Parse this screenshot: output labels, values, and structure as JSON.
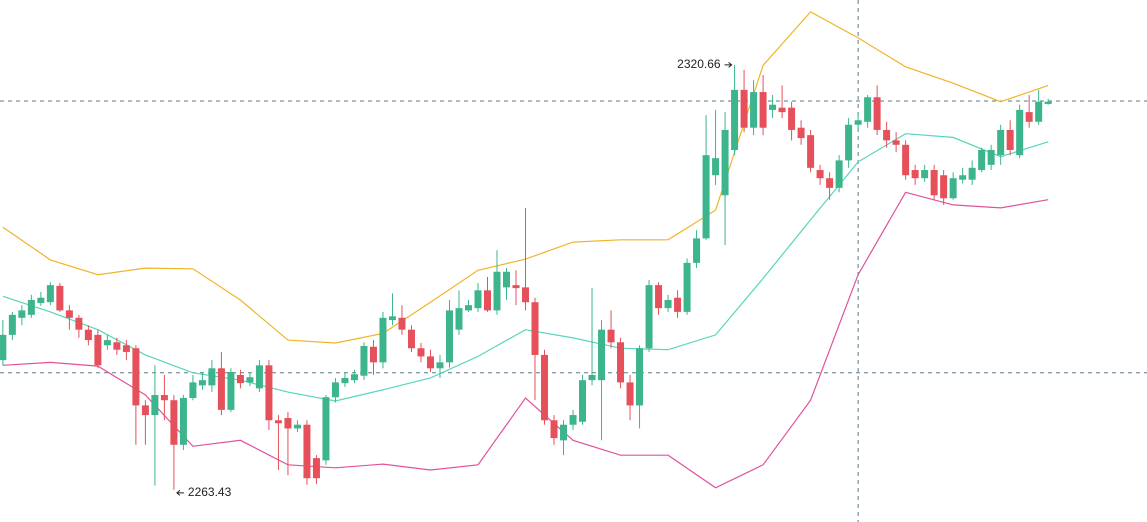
{
  "chart_data": {
    "type": "candlestick",
    "up_color": "#3cb48c",
    "down_color": "#e5505a",
    "ylim": [
      2259.1,
      2329.4
    ],
    "xlim": [
      -0.3,
      120.4
    ],
    "candles": [
      [
        2280.9,
        2286.3,
        2280.2,
        2284.3
      ],
      [
        2284.3,
        2287.4,
        2283.6,
        2287.0
      ],
      [
        2286.6,
        2288.3,
        2285.6,
        2287.6
      ],
      [
        2287.0,
        2289.7,
        2286.6,
        2289.0
      ],
      [
        2288.6,
        2290.1,
        2288.2,
        2289.3
      ],
      [
        2288.7,
        2291.4,
        2288.3,
        2291.0
      ],
      [
        2290.9,
        2291.3,
        2287.4,
        2287.6
      ],
      [
        2287.6,
        2288.3,
        2285.0,
        2286.6
      ],
      [
        2286.6,
        2287.0,
        2283.9,
        2285.0
      ],
      [
        2285.0,
        2285.6,
        2282.9,
        2283.6
      ],
      [
        2284.3,
        2285.0,
        2279.8,
        2280.2
      ],
      [
        2282.9,
        2284.3,
        2282.3,
        2283.6
      ],
      [
        2283.3,
        2283.9,
        2281.6,
        2282.3
      ],
      [
        2282.9,
        2283.6,
        2280.9,
        2282.0
      ],
      [
        2282.5,
        2282.9,
        2269.5,
        2274.8
      ],
      [
        2274.8,
        2275.5,
        2269.5,
        2273.5
      ],
      [
        2273.5,
        2280.2,
        2264.0,
        2276.2
      ],
      [
        2276.2,
        2278.9,
        2272.8,
        2275.5
      ],
      [
        2275.5,
        2276.2,
        2263.43,
        2269.5
      ],
      [
        2269.5,
        2276.2,
        2268.8,
        2275.8
      ],
      [
        2275.8,
        2278.9,
        2275.5,
        2277.9
      ],
      [
        2277.5,
        2279.3,
        2276.9,
        2278.2
      ],
      [
        2277.5,
        2280.9,
        2276.6,
        2279.8
      ],
      [
        2279.8,
        2282.0,
        2273.5,
        2274.2
      ],
      [
        2274.2,
        2279.8,
        2273.9,
        2279.3
      ],
      [
        2278.9,
        2279.6,
        2277.1,
        2277.8
      ],
      [
        2277.9,
        2279.3,
        2277.4,
        2278.6
      ],
      [
        2277.1,
        2280.9,
        2276.6,
        2280.2
      ],
      [
        2280.2,
        2280.9,
        2271.5,
        2272.8
      ],
      [
        2272.8,
        2273.5,
        2266.1,
        2272.4
      ],
      [
        2273.1,
        2273.9,
        2265.4,
        2271.7
      ],
      [
        2271.7,
        2272.8,
        2271.2,
        2272.2
      ],
      [
        2272.2,
        2272.8,
        2264.1,
        2265.0
      ],
      [
        2267.7,
        2268.1,
        2264.2,
        2265.0
      ],
      [
        2267.4,
        2276.2,
        2266.8,
        2275.9
      ],
      [
        2275.9,
        2278.5,
        2275.2,
        2277.9
      ],
      [
        2277.8,
        2279.3,
        2277.3,
        2278.5
      ],
      [
        2278.2,
        2279.6,
        2277.8,
        2279.0
      ],
      [
        2278.8,
        2283.3,
        2278.2,
        2282.8
      ],
      [
        2282.7,
        2283.6,
        2278.9,
        2280.6
      ],
      [
        2280.6,
        2287.4,
        2279.8,
        2286.6
      ],
      [
        2286.3,
        2289.9,
        2285.6,
        2286.8
      ],
      [
        2286.6,
        2288.3,
        2284.3,
        2285.0
      ],
      [
        2285.0,
        2285.6,
        2282.0,
        2282.5
      ],
      [
        2282.5,
        2283.2,
        2280.6,
        2281.4
      ],
      [
        2281.4,
        2282.3,
        2279.3,
        2279.8
      ],
      [
        2279.8,
        2281.6,
        2278.5,
        2280.6
      ],
      [
        2280.6,
        2289.0,
        2279.9,
        2287.6
      ],
      [
        2285.0,
        2290.3,
        2284.3,
        2287.9
      ],
      [
        2287.6,
        2289.0,
        2287.4,
        2288.3
      ],
      [
        2287.9,
        2291.3,
        2287.4,
        2290.3
      ],
      [
        2290.3,
        2292.1,
        2287.4,
        2287.6
      ],
      [
        2287.6,
        2295.7,
        2287.0,
        2292.8
      ],
      [
        2290.7,
        2293.3,
        2289.0,
        2292.8
      ],
      [
        2291.0,
        2293.0,
        2288.3,
        2290.6
      ],
      [
        2290.7,
        2301.4,
        2287.6,
        2288.7
      ],
      [
        2288.7,
        2289.3,
        2275.5,
        2281.6
      ],
      [
        2281.6,
        2282.3,
        2272.2,
        2272.8
      ],
      [
        2272.8,
        2273.5,
        2269.5,
        2270.4
      ],
      [
        2270.1,
        2272.8,
        2268.1,
        2272.2
      ],
      [
        2272.2,
        2274.2,
        2271.5,
        2273.5
      ],
      [
        2272.6,
        2278.9,
        2272.2,
        2278.2
      ],
      [
        2278.2,
        2290.6,
        2277.5,
        2278.9
      ],
      [
        2278.2,
        2286.3,
        2270.1,
        2285.0
      ],
      [
        2285.0,
        2287.6,
        2282.5,
        2283.3
      ],
      [
        2283.3,
        2283.9,
        2277.1,
        2277.9
      ],
      [
        2277.9,
        2278.9,
        2272.8,
        2274.8
      ],
      [
        2274.8,
        2282.9,
        2271.7,
        2282.5
      ],
      [
        2282.5,
        2291.7,
        2282.0,
        2291.0
      ],
      [
        2291.0,
        2291.4,
        2287.0,
        2287.9
      ],
      [
        2287.9,
        2289.7,
        2287.4,
        2289.0
      ],
      [
        2289.3,
        2290.3,
        2286.6,
        2287.4
      ],
      [
        2287.4,
        2294.6,
        2287.0,
        2294.0
      ],
      [
        2294.0,
        2298.4,
        2293.3,
        2297.3
      ],
      [
        2297.3,
        2313.9,
        2297.1,
        2308.5
      ],
      [
        2305.8,
        2314.6,
        2304.5,
        2308.1
      ],
      [
        2303.1,
        2314.3,
        2296.4,
        2311.9
      ],
      [
        2309.2,
        2320.66,
        2308.5,
        2317.3
      ],
      [
        2317.3,
        2320.0,
        2311.6,
        2312.2
      ],
      [
        2312.2,
        2318.6,
        2311.2,
        2317.0
      ],
      [
        2317.0,
        2319.3,
        2311.2,
        2312.2
      ],
      [
        2314.6,
        2316.6,
        2313.5,
        2315.3
      ],
      [
        2314.9,
        2317.9,
        2313.5,
        2314.3
      ],
      [
        2314.9,
        2315.7,
        2310.5,
        2311.9
      ],
      [
        2312.2,
        2313.2,
        2309.9,
        2310.8
      ],
      [
        2311.2,
        2311.9,
        2306.2,
        2306.8
      ],
      [
        2306.5,
        2307.2,
        2304.5,
        2305.4
      ],
      [
        2305.4,
        2306.2,
        2302.5,
        2304.1
      ],
      [
        2304.1,
        2308.5,
        2303.5,
        2307.8
      ],
      [
        2307.8,
        2313.5,
        2306.8,
        2312.6
      ],
      [
        2312.6,
        2314.3,
        2311.9,
        2313.2
      ],
      [
        2313.0,
        2316.6,
        2312.2,
        2316.3
      ],
      [
        2316.3,
        2317.9,
        2311.2,
        2311.9
      ],
      [
        2311.9,
        2313.0,
        2309.5,
        2310.5
      ],
      [
        2310.5,
        2311.6,
        2308.9,
        2309.9
      ],
      [
        2309.9,
        2310.5,
        2305.2,
        2305.8
      ],
      [
        2306.5,
        2307.2,
        2304.5,
        2305.4
      ],
      [
        2305.4,
        2307.2,
        2304.9,
        2306.5
      ],
      [
        2306.5,
        2307.2,
        2302.5,
        2303.1
      ],
      [
        2305.8,
        2306.5,
        2301.8,
        2302.7
      ],
      [
        2302.7,
        2306.2,
        2302.5,
        2305.4
      ],
      [
        2305.2,
        2306.8,
        2304.7,
        2305.8
      ],
      [
        2305.2,
        2307.8,
        2304.5,
        2306.8
      ],
      [
        2306.5,
        2309.5,
        2306.2,
        2309.2
      ],
      [
        2307.2,
        2309.9,
        2306.5,
        2309.2
      ],
      [
        2308.5,
        2312.6,
        2307.2,
        2311.9
      ],
      [
        2311.9,
        2313.2,
        2308.5,
        2309.2
      ],
      [
        2308.5,
        2315.3,
        2308.1,
        2314.6
      ],
      [
        2314.3,
        2316.6,
        2312.2,
        2313.0
      ],
      [
        2313.0,
        2317.3,
        2312.6,
        2315.7
      ],
      [
        2315.4,
        2316.1,
        2315.3,
        2315.7
      ]
    ],
    "bands": [
      {
        "color": "#f0b429",
        "x": [
          0,
          5,
          10,
          15,
          20,
          25,
          30,
          35,
          40,
          45,
          50,
          55,
          60,
          65,
          70,
          75,
          80,
          85,
          90,
          95,
          100,
          105,
          110
        ],
        "values": [
          2298.8,
          2294.4,
          2292.4,
          2293.3,
          2293.2,
          2289.0,
          2283.6,
          2283.2,
          2284.5,
          2288.7,
          2293.0,
          2294.5,
          2296.8,
          2297.1,
          2297.1,
          2301.1,
          2320.6,
          2327.8,
          2324.3,
          2320.4,
          2318.2,
          2315.7,
          2317.9
        ]
      },
      {
        "color": "#55d6be",
        "x": [
          0,
          5,
          10,
          15,
          20,
          25,
          30,
          35,
          40,
          45,
          50,
          55,
          60,
          65,
          70,
          75,
          80,
          85,
          90,
          95,
          100,
          105,
          110
        ],
        "values": [
          2289.5,
          2287.4,
          2285.0,
          2281.6,
          2279.2,
          2278.2,
          2276.6,
          2275.4,
          2276.9,
          2278.5,
          2281.4,
          2285.0,
          2283.9,
          2282.5,
          2282.3,
          2284.3,
          2291.9,
          2299.8,
          2307.6,
          2311.4,
          2310.9,
          2308.3,
          2310.3
        ]
      },
      {
        "color": "#e0529c",
        "x": [
          0,
          5,
          10,
          15,
          20,
          25,
          30,
          35,
          40,
          45,
          50,
          55,
          60,
          65,
          70,
          75,
          80,
          85,
          90,
          95,
          100,
          105,
          110
        ],
        "values": [
          2280.2,
          2280.6,
          2280.1,
          2276.2,
          2269.3,
          2270.1,
          2266.8,
          2266.4,
          2266.9,
          2266.1,
          2266.8,
          2275.8,
          2270.1,
          2268.1,
          2268.1,
          2263.7,
          2266.8,
          2275.5,
          2292.4,
          2303.5,
          2301.8,
          2301.4,
          2302.5
        ]
      }
    ],
    "guide_lines": [
      2315.8,
      2279.2
    ],
    "crosshair_index": 90
  }
}
